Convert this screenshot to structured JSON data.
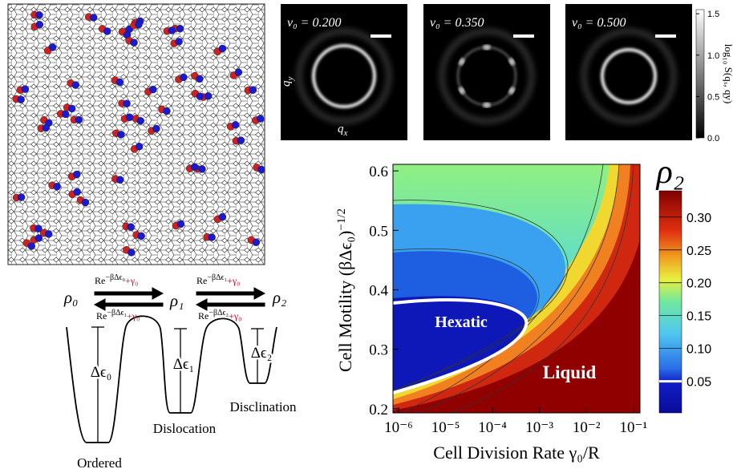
{
  "diffraction": {
    "panels": [
      {
        "label": "v₀ = 0.200"
      },
      {
        "label": "v₀ = 0.350"
      },
      {
        "label": "v₀ = 0.500"
      }
    ],
    "qy": {
      "symbol": "q",
      "subscript": "y"
    },
    "qx": {
      "symbol": "q",
      "subscript": "x"
    },
    "colorbar": {
      "label": "log₁₀ S(qₓ, q",
      "label_end": "y)",
      "lim": [
        0,
        1.55
      ],
      "ticks": [
        {
          "value": 0,
          "label": "0.0"
        },
        0.5,
        {
          "value": 1,
          "label": "1.0"
        },
        1.5
      ]
    }
  },
  "chart_data": {
    "type": "heatmap",
    "xlabel": "Cell Division Rate γ₀/R",
    "ylabel": "Cell Motility (βΔϵ₀)",
    "ylabel_exponent": "−1/2",
    "xscale": "log",
    "xlim": [
      7.6e-07,
      0.138
    ],
    "ylim": [
      0.193,
      0.611
    ],
    "xticks": [
      {
        "value": 1e-06,
        "label": "10⁻⁶"
      },
      {
        "value": 1e-05,
        "label": "10⁻⁵"
      },
      {
        "value": 0.0001,
        "label": "10⁻⁴"
      },
      {
        "value": 0.001,
        "label": "10⁻³"
      },
      {
        "value": 0.01,
        "label": "10⁻²"
      },
      {
        "value": 0.1,
        "label": "10⁻¹"
      }
    ],
    "yticks": [
      0.2,
      0.3,
      0.4,
      0.5,
      0.6
    ],
    "regions": [
      "Hexatic",
      "Liquid"
    ],
    "colorbar": {
      "title": "ρ₂",
      "lim": [
        0.002,
        0.34
      ],
      "ticks": [
        0.05,
        {
          "value": 0.1,
          "label": "0.10"
        },
        0.15,
        {
          "value": 0.2,
          "label": "0.20"
        },
        0.25,
        {
          "value": 0.3,
          "label": "0.30"
        }
      ]
    }
  },
  "diagram": {
    "states": [
      "ρ₀",
      "ρ₁",
      "ρ₂"
    ],
    "rates": [
      {
        "prefix": "Re",
        "exponent": "−βΔϵ₀",
        "addend": "+γ₀"
      },
      {
        "prefix": "Re",
        "exponent": "−βΔϵ₁",
        "addend": "+γ₀"
      },
      {
        "prefix": "Re",
        "exponent": "−βΔϵ₁",
        "addend": "+γ₀"
      },
      {
        "prefix": "Re",
        "exponent": "−βΔϵ₂",
        "addend": "+γ₀"
      }
    ],
    "barriers": [
      "Δϵ₀",
      "Δϵ₁",
      "Δϵ₂"
    ],
    "wells": [
      "Ordered",
      "Dislocation",
      "Disclination"
    ]
  }
}
